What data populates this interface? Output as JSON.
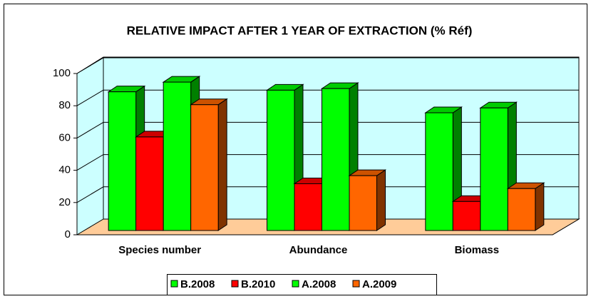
{
  "chart_data": {
    "type": "bar3d",
    "title": "RELATIVE IMPACT AFTER 1 YEAR OF EXTRACTION (% Réf)",
    "categories": [
      "Species number",
      "Abundance",
      "Biomass"
    ],
    "series": [
      {
        "name": "B.2008",
        "color": "#00ff00",
        "values": [
          86,
          87,
          73
        ]
      },
      {
        "name": "B.2010",
        "color": "#ff0000",
        "values": [
          58,
          29,
          18
        ]
      },
      {
        "name": "A.2008",
        "color": "#00ff00",
        "values": [
          92,
          88,
          76
        ]
      },
      {
        "name": "A.2009",
        "color": "#ff6600",
        "values": [
          78,
          34,
          26
        ]
      }
    ],
    "ylim": [
      0,
      100
    ],
    "yticks": [
      0,
      20,
      40,
      60,
      80,
      100
    ],
    "grid": true,
    "legend": "bottom"
  }
}
